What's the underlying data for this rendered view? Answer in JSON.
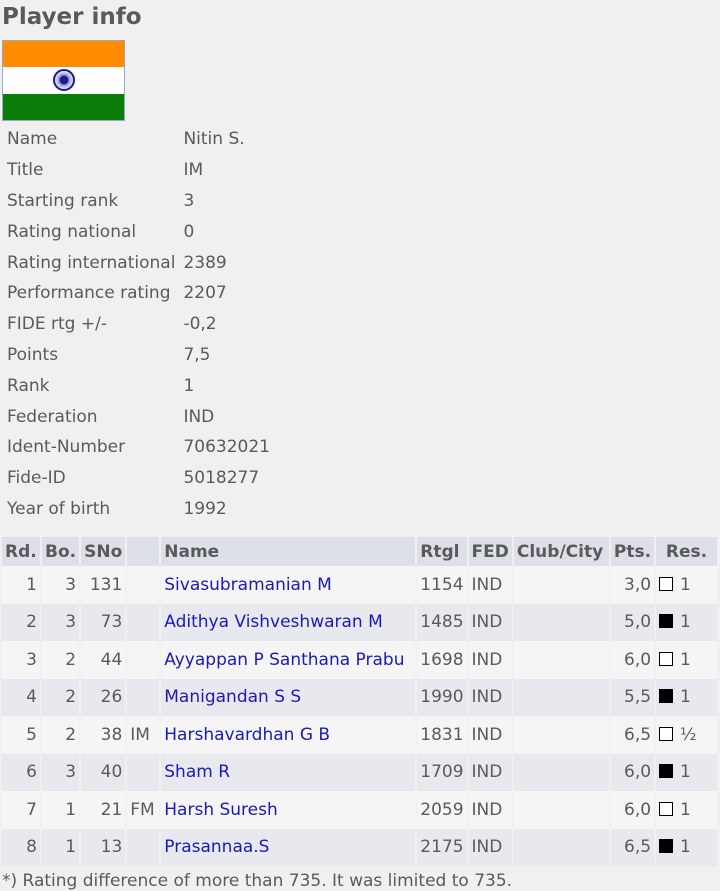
{
  "title": "Player info",
  "flag": {
    "country": "India",
    "colors": [
      "#ff8c00",
      "#ffffff",
      "#138808"
    ],
    "chakra": "#1a1a8c"
  },
  "info": [
    [
      "Name",
      "Nitin S."
    ],
    [
      "Title",
      "IM"
    ],
    [
      "Starting rank",
      "3"
    ],
    [
      "Rating national",
      "0"
    ],
    [
      "Rating international",
      "2389"
    ],
    [
      "Performance rating",
      "2207"
    ],
    [
      "FIDE rtg +/-",
      "-0,2"
    ],
    [
      "Points",
      "7,5"
    ],
    [
      "Rank",
      "1"
    ],
    [
      "Federation",
      "IND"
    ],
    [
      "Ident-Number",
      "70632021"
    ],
    [
      "Fide-ID",
      "5018277"
    ],
    [
      "Year of birth",
      "1992"
    ]
  ],
  "table": {
    "headers": [
      "Rd.",
      "Bo.",
      "SNo",
      "",
      "Name",
      "Rtgl",
      "FED",
      "Club/City",
      "Pts.",
      "Res."
    ],
    "rows": [
      {
        "rd": "1",
        "bo": "3",
        "sno": "131",
        "title": "",
        "name": "Sivasubramanian M",
        "rtg": "1154",
        "fed": "IND",
        "club": "",
        "pts": "3,0",
        "color": "white",
        "res": "1"
      },
      {
        "rd": "2",
        "bo": "3",
        "sno": "73",
        "title": "",
        "name": "Adithya Vishveshwaran M",
        "rtg": "1485",
        "fed": "IND",
        "club": "",
        "pts": "5,0",
        "color": "black",
        "res": "1"
      },
      {
        "rd": "3",
        "bo": "2",
        "sno": "44",
        "title": "",
        "name": "Ayyappan P Santhana Prabu",
        "rtg": "1698",
        "fed": "IND",
        "club": "",
        "pts": "6,0",
        "color": "white",
        "res": "1"
      },
      {
        "rd": "4",
        "bo": "2",
        "sno": "26",
        "title": "",
        "name": "Manigandan S S",
        "rtg": "1990",
        "fed": "IND",
        "club": "",
        "pts": "5,5",
        "color": "black",
        "res": "1"
      },
      {
        "rd": "5",
        "bo": "2",
        "sno": "38",
        "title": "IM",
        "name": "Harshavardhan G B",
        "rtg": "1831",
        "fed": "IND",
        "club": "",
        "pts": "6,5",
        "color": "white",
        "res": "½"
      },
      {
        "rd": "6",
        "bo": "3",
        "sno": "40",
        "title": "",
        "name": "Sham R",
        "rtg": "1709",
        "fed": "IND",
        "club": "",
        "pts": "6,0",
        "color": "black",
        "res": "1"
      },
      {
        "rd": "7",
        "bo": "1",
        "sno": "21",
        "title": "FM",
        "name": "Harsh Suresh",
        "rtg": "2059",
        "fed": "IND",
        "club": "",
        "pts": "6,0",
        "color": "white",
        "res": "1"
      },
      {
        "rd": "8",
        "bo": "1",
        "sno": "13",
        "title": "",
        "name": "Prasannaa.S",
        "rtg": "2175",
        "fed": "IND",
        "club": "",
        "pts": "6,5",
        "color": "black",
        "res": "1"
      }
    ]
  },
  "footnote": "*) Rating difference of more than 735. It was limited to 735."
}
